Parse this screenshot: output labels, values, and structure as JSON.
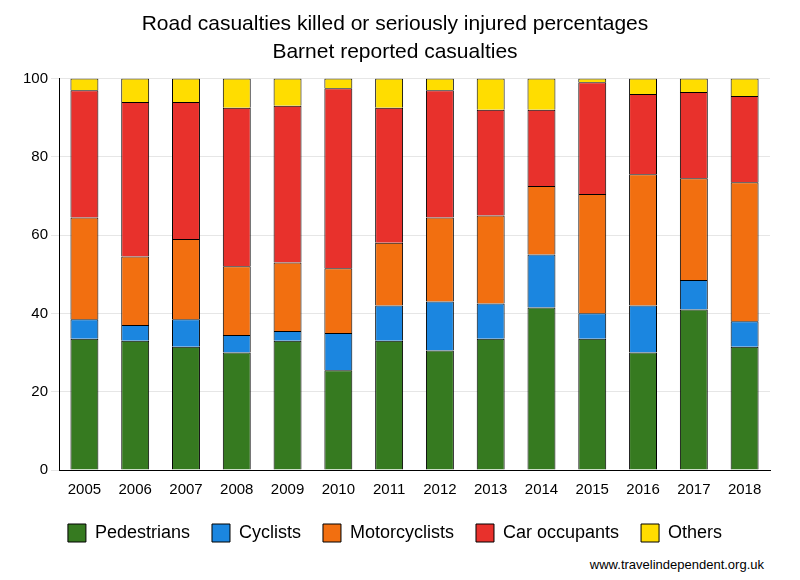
{
  "chart_data": {
    "type": "bar",
    "title": "Road casualties killed or seriously injured percentages",
    "subtitle": "Barnet reported casualties",
    "source": "www.travelindependent.org.uk",
    "categories": [
      "2005",
      "2006",
      "2007",
      "2008",
      "2009",
      "2010",
      "2011",
      "2012",
      "2013",
      "2014",
      "2015",
      "2016",
      "2017",
      "2018"
    ],
    "series": [
      {
        "name": "Pedestrians",
        "color": "#367a20",
        "values": [
          33.5,
          33,
          31.5,
          30,
          33,
          25.5,
          33,
          30.5,
          33.5,
          41.5,
          33.5,
          30,
          41,
          31.5
        ]
      },
      {
        "name": "Cyclists",
        "color": "#1b86e0",
        "values": [
          5,
          4,
          7,
          4.5,
          2.5,
          9.5,
          9,
          12.5,
          9,
          13.5,
          6.5,
          12,
          7.5,
          6.5
        ]
      },
      {
        "name": "Motorcyclists",
        "color": "#f26f10",
        "values": [
          26,
          17.5,
          20.5,
          17.5,
          17.5,
          16.5,
          16,
          21.5,
          22.5,
          17.5,
          30.5,
          33.5,
          26,
          35.5
        ]
      },
      {
        "name": "Car occupants",
        "color": "#e8312c",
        "values": [
          32.5,
          39.5,
          35,
          40.5,
          40,
          46,
          34.5,
          32.5,
          27,
          19.5,
          28.5,
          20.5,
          22,
          22
        ]
      },
      {
        "name": "Others",
        "color": "#ffdd00",
        "values": [
          3,
          6,
          6,
          7.5,
          7,
          2.5,
          7.5,
          3,
          8,
          8,
          1,
          4,
          3.5,
          4.5
        ]
      }
    ],
    "ylim": [
      0,
      100
    ],
    "yticks": [
      0,
      20,
      40,
      60,
      80,
      100
    ],
    "stacked": true,
    "grid": true,
    "legend": "bottom"
  }
}
